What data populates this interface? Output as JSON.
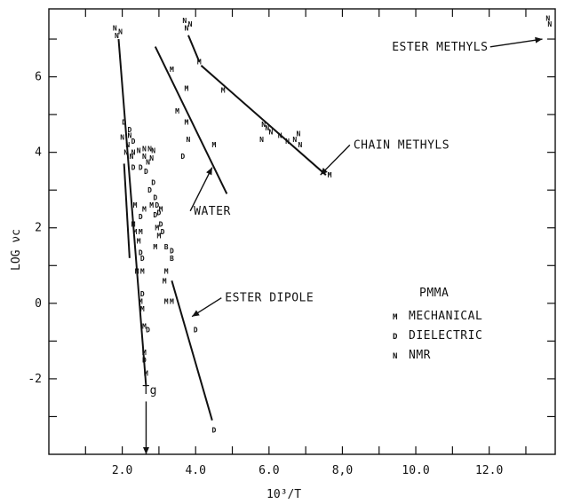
{
  "chart_data": {
    "type": "scatter",
    "xlabel": "10³/T",
    "ylabel": "LOG νc",
    "xlim": [
      0,
      13.8
    ],
    "ylim": [
      -4,
      7.8
    ],
    "xticks": [
      2.0,
      4.0,
      6.0,
      8.0,
      10.0,
      12.0
    ],
    "xtick_labels": [
      "2.0",
      "4.0",
      "6.0",
      "8,0",
      "10.0",
      "12.0"
    ],
    "yticks": [
      -2,
      0,
      2,
      4,
      6
    ],
    "ytick_labels": [
      "-2",
      "0",
      "2",
      "4",
      "6"
    ],
    "grid": false,
    "legend": {
      "title": "PMMA",
      "entries": [
        {
          "marker": "M",
          "label": "MECHANICAL"
        },
        {
          "marker": "D",
          "label": "DIELECTRIC"
        },
        {
          "marker": "N",
          "label": "NMR"
        }
      ]
    },
    "points": [
      {
        "x": 1.8,
        "y": 7.3,
        "m": "N"
      },
      {
        "x": 1.95,
        "y": 7.2,
        "m": "N"
      },
      {
        "x": 1.85,
        "y": 7.1,
        "m": "N"
      },
      {
        "x": 2.05,
        "y": 4.8,
        "m": "D"
      },
      {
        "x": 2.2,
        "y": 4.6,
        "m": "D"
      },
      {
        "x": 2.2,
        "y": 4.45,
        "m": "N"
      },
      {
        "x": 2.0,
        "y": 4.4,
        "m": "N"
      },
      {
        "x": 2.3,
        "y": 4.3,
        "m": "D"
      },
      {
        "x": 2.15,
        "y": 4.2,
        "m": "N"
      },
      {
        "x": 2.3,
        "y": 4.0,
        "m": "N"
      },
      {
        "x": 2.45,
        "y": 4.05,
        "m": "N"
      },
      {
        "x": 2.6,
        "y": 4.1,
        "m": "N"
      },
      {
        "x": 2.75,
        "y": 4.1,
        "m": "N"
      },
      {
        "x": 2.85,
        "y": 4.05,
        "m": "N"
      },
      {
        "x": 2.1,
        "y": 4.0,
        "m": "N"
      },
      {
        "x": 2.25,
        "y": 3.9,
        "m": "N"
      },
      {
        "x": 2.6,
        "y": 3.9,
        "m": "N"
      },
      {
        "x": 2.8,
        "y": 3.85,
        "m": "N"
      },
      {
        "x": 2.7,
        "y": 3.75,
        "m": "N"
      },
      {
        "x": 2.3,
        "y": 3.6,
        "m": "D"
      },
      {
        "x": 2.5,
        "y": 3.6,
        "m": "D"
      },
      {
        "x": 2.65,
        "y": 3.5,
        "m": "D"
      },
      {
        "x": 2.85,
        "y": 3.2,
        "m": "D"
      },
      {
        "x": 2.75,
        "y": 3.0,
        "m": "D"
      },
      {
        "x": 2.9,
        "y": 2.8,
        "m": "D"
      },
      {
        "x": 2.8,
        "y": 2.6,
        "m": "M"
      },
      {
        "x": 2.95,
        "y": 2.6,
        "m": "D"
      },
      {
        "x": 2.35,
        "y": 2.6,
        "m": "M"
      },
      {
        "x": 2.6,
        "y": 2.5,
        "m": "M"
      },
      {
        "x": 3.05,
        "y": 2.5,
        "m": "M"
      },
      {
        "x": 3.0,
        "y": 2.4,
        "m": "D"
      },
      {
        "x": 2.9,
        "y": 2.35,
        "m": "D"
      },
      {
        "x": 2.5,
        "y": 2.3,
        "m": "D"
      },
      {
        "x": 2.3,
        "y": 2.1,
        "m": "M"
      },
      {
        "x": 3.05,
        "y": 2.1,
        "m": "D"
      },
      {
        "x": 2.95,
        "y": 2.0,
        "m": "M"
      },
      {
        "x": 2.35,
        "y": 1.9,
        "m": "M"
      },
      {
        "x": 2.5,
        "y": 1.9,
        "m": "M"
      },
      {
        "x": 3.1,
        "y": 1.9,
        "m": "D"
      },
      {
        "x": 3.0,
        "y": 1.8,
        "m": "M"
      },
      {
        "x": 2.45,
        "y": 1.65,
        "m": "M"
      },
      {
        "x": 2.9,
        "y": 1.5,
        "m": "M"
      },
      {
        "x": 3.2,
        "y": 1.5,
        "m": "B"
      },
      {
        "x": 3.35,
        "y": 1.4,
        "m": "D"
      },
      {
        "x": 2.5,
        "y": 1.35,
        "m": "D"
      },
      {
        "x": 2.55,
        "y": 1.2,
        "m": "D"
      },
      {
        "x": 3.35,
        "y": 1.2,
        "m": "B"
      },
      {
        "x": 2.4,
        "y": 0.85,
        "m": "M"
      },
      {
        "x": 2.55,
        "y": 0.85,
        "m": "M"
      },
      {
        "x": 3.2,
        "y": 0.85,
        "m": "M"
      },
      {
        "x": 3.15,
        "y": 0.6,
        "m": "M"
      },
      {
        "x": 2.55,
        "y": 0.25,
        "m": "D"
      },
      {
        "x": 2.5,
        "y": 0.05,
        "m": "M"
      },
      {
        "x": 3.2,
        "y": 0.05,
        "m": "M"
      },
      {
        "x": 3.35,
        "y": 0.05,
        "m": "M"
      },
      {
        "x": 2.55,
        "y": -0.15,
        "m": "M"
      },
      {
        "x": 2.6,
        "y": -0.6,
        "m": "M"
      },
      {
        "x": 2.7,
        "y": -0.7,
        "m": "D"
      },
      {
        "x": 2.6,
        "y": -1.3,
        "m": "M"
      },
      {
        "x": 2.6,
        "y": -1.5,
        "m": "D"
      },
      {
        "x": 2.65,
        "y": -1.85,
        "m": "M"
      },
      {
        "x": 4.0,
        "y": -0.7,
        "m": "D"
      },
      {
        "x": 4.5,
        "y": -3.35,
        "m": "D"
      },
      {
        "x": 3.35,
        "y": 6.2,
        "m": "M"
      },
      {
        "x": 3.75,
        "y": 5.7,
        "m": "M"
      },
      {
        "x": 3.5,
        "y": 5.1,
        "m": "M"
      },
      {
        "x": 3.75,
        "y": 4.8,
        "m": "M"
      },
      {
        "x": 3.8,
        "y": 4.35,
        "m": "N"
      },
      {
        "x": 4.5,
        "y": 4.2,
        "m": "M"
      },
      {
        "x": 3.65,
        "y": 3.9,
        "m": "D"
      },
      {
        "x": 3.7,
        "y": 7.5,
        "m": "N"
      },
      {
        "x": 3.85,
        "y": 7.4,
        "m": "N"
      },
      {
        "x": 3.75,
        "y": 7.3,
        "m": "N"
      },
      {
        "x": 4.1,
        "y": 6.4,
        "m": "M"
      },
      {
        "x": 4.75,
        "y": 5.65,
        "m": "M"
      },
      {
        "x": 5.85,
        "y": 4.75,
        "m": "N"
      },
      {
        "x": 5.95,
        "y": 4.65,
        "m": "N"
      },
      {
        "x": 6.05,
        "y": 4.55,
        "m": "N"
      },
      {
        "x": 5.8,
        "y": 4.35,
        "m": "N"
      },
      {
        "x": 6.3,
        "y": 4.45,
        "m": "N"
      },
      {
        "x": 6.5,
        "y": 4.3,
        "m": "N"
      },
      {
        "x": 6.7,
        "y": 4.35,
        "m": "N"
      },
      {
        "x": 6.8,
        "y": 4.5,
        "m": "N"
      },
      {
        "x": 6.85,
        "y": 4.2,
        "m": "N"
      },
      {
        "x": 7.65,
        "y": 3.4,
        "m": "M"
      },
      {
        "x": 13.6,
        "y": 7.55,
        "m": "N"
      },
      {
        "x": 13.65,
        "y": 7.4,
        "m": "N"
      }
    ],
    "lines": [
      {
        "x": [
          1.9,
          2.65
        ],
        "y": [
          7.0,
          -2.2
        ]
      },
      {
        "x": [
          2.05,
          2.2
        ],
        "y": [
          3.7,
          1.2
        ]
      },
      {
        "x": [
          2.9,
          4.85
        ],
        "y": [
          6.8,
          2.9
        ]
      },
      {
        "x": [
          3.35,
          4.45
        ],
        "y": [
          0.6,
          -3.1
        ]
      },
      {
        "x": [
          3.8,
          4.1
        ],
        "y": [
          7.1,
          6.4
        ]
      },
      {
        "x": [
          4.15,
          7.55
        ],
        "y": [
          6.3,
          3.4
        ]
      }
    ],
    "annotations": [
      {
        "text": "ESTER METHYLS",
        "x": 9.35,
        "y": 6.7,
        "arrow_to": [
          13.45,
          7.0
        ]
      },
      {
        "text": "CHAIN METHYLS",
        "x": 8.3,
        "y": 4.1,
        "arrow_to": [
          7.4,
          3.4
        ]
      },
      {
        "text": "WATER",
        "x": 3.95,
        "y": 2.35,
        "arrow_to": [
          4.45,
          3.6
        ]
      },
      {
        "text": "ESTER DIPOLE",
        "x": 4.8,
        "y": 0.05,
        "arrow_to": [
          3.9,
          -0.35
        ]
      },
      {
        "text": "Tg",
        "x": 2.55,
        "y": -2.4,
        "arrow_to": [
          2.65,
          -4.0
        ]
      }
    ]
  }
}
